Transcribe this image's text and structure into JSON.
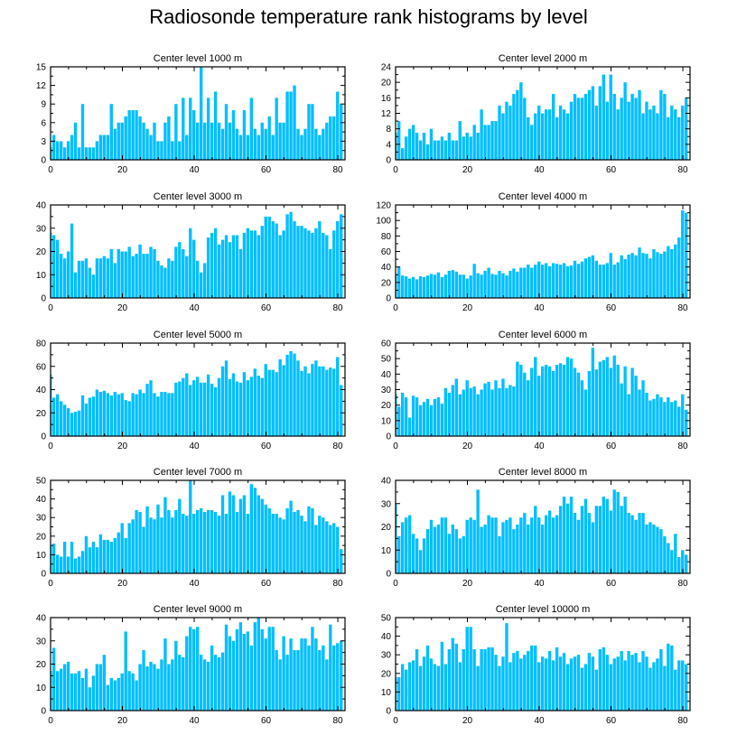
{
  "title": "Radiosonde temperature rank histograms by level",
  "colors": {
    "bar": "#00bfff",
    "axis": "#000000"
  },
  "chart_data": [
    {
      "type": "bar",
      "title": "Center level 1000 m",
      "xlim": [
        0,
        82
      ],
      "ylim": [
        0,
        15
      ],
      "xticks": [
        0,
        20,
        40,
        60,
        80
      ],
      "yticks": [
        0,
        3,
        6,
        9,
        12,
        15
      ],
      "values": [
        2,
        4,
        3,
        3,
        2,
        3,
        4,
        6,
        2,
        9,
        2,
        2,
        2,
        3,
        4,
        4,
        4,
        9,
        5,
        6,
        6,
        7,
        8,
        8,
        8,
        7,
        6,
        5,
        4,
        6,
        3,
        3,
        6,
        7,
        3,
        9,
        3,
        10,
        4,
        10,
        8,
        6,
        15,
        6,
        10,
        6,
        11,
        6,
        5,
        9,
        6,
        8,
        5,
        4,
        8,
        4,
        10,
        5,
        4,
        6,
        5,
        7,
        4,
        10,
        6,
        6,
        11,
        11,
        12,
        5,
        4,
        5,
        9,
        9,
        5,
        4,
        5,
        6,
        7,
        7,
        11,
        9
      ]
    },
    {
      "type": "bar",
      "title": "Center level 2000 m",
      "xlim": [
        0,
        82
      ],
      "ylim": [
        0,
        24
      ],
      "xticks": [
        0,
        20,
        40,
        60,
        80
      ],
      "yticks": [
        0,
        4,
        8,
        12,
        16,
        20,
        24
      ],
      "values": [
        7,
        10,
        3,
        6,
        8,
        9,
        7,
        5,
        7,
        4,
        8,
        5,
        5,
        6,
        5,
        7,
        5,
        5,
        10,
        6,
        7,
        6,
        9,
        7,
        13,
        9,
        9,
        10,
        10,
        14,
        12,
        15,
        14,
        17,
        18,
        20,
        16,
        11,
        9,
        12,
        14,
        12,
        13,
        13,
        17,
        11,
        14,
        13,
        12,
        15,
        17,
        16,
        16,
        17,
        18,
        19,
        14,
        19,
        22,
        15,
        22,
        17,
        13,
        16,
        20,
        15,
        17,
        16,
        18,
        12,
        15,
        13,
        14,
        12,
        18,
        17,
        11,
        14,
        13,
        11,
        14,
        16
      ]
    },
    {
      "type": "bar",
      "title": "Center level 3000 m",
      "xlim": [
        0,
        82
      ],
      "ylim": [
        0,
        40
      ],
      "xticks": [
        0,
        20,
        40,
        60,
        80
      ],
      "yticks": [
        0,
        10,
        20,
        30,
        40
      ],
      "values": [
        28,
        27,
        25,
        19,
        17,
        20,
        32,
        11,
        16,
        16,
        17,
        13,
        10,
        17,
        17,
        18,
        17,
        21,
        15,
        21,
        20,
        20,
        22,
        18,
        19,
        23,
        19,
        19,
        22,
        21,
        16,
        14,
        13,
        17,
        16,
        22,
        24,
        21,
        18,
        30,
        25,
        16,
        11,
        15,
        26,
        28,
        30,
        23,
        25,
        27,
        24,
        27,
        27,
        21,
        28,
        30,
        29,
        29,
        27,
        31,
        35,
        35,
        33,
        32,
        27,
        29,
        36,
        37,
        33,
        31,
        31,
        30,
        29,
        28,
        30,
        33,
        28,
        27,
        21,
        29,
        33,
        36
      ]
    },
    {
      "type": "bar",
      "title": "Center level 4000 m",
      "xlim": [
        0,
        82
      ],
      "ylim": [
        0,
        120
      ],
      "xticks": [
        0,
        20,
        40,
        60,
        80
      ],
      "yticks": [
        0,
        20,
        40,
        60,
        80,
        100,
        120
      ],
      "values": [
        31,
        40,
        29,
        28,
        25,
        27,
        24,
        28,
        27,
        29,
        31,
        30,
        33,
        27,
        30,
        35,
        36,
        34,
        30,
        30,
        25,
        29,
        44,
        32,
        30,
        35,
        39,
        31,
        30,
        35,
        32,
        29,
        35,
        38,
        34,
        39,
        39,
        43,
        39,
        43,
        47,
        43,
        45,
        41,
        45,
        44,
        43,
        45,
        41,
        42,
        48,
        44,
        47,
        51,
        53,
        55,
        48,
        43,
        43,
        45,
        58,
        43,
        46,
        55,
        50,
        56,
        58,
        55,
        65,
        58,
        57,
        51,
        63,
        59,
        57,
        60,
        67,
        63,
        69,
        78,
        113,
        110
      ]
    },
    {
      "type": "bar",
      "title": "Center level 5000 m",
      "xlim": [
        0,
        82
      ],
      "ylim": [
        0,
        80
      ],
      "xticks": [
        0,
        20,
        40,
        60,
        80
      ],
      "yticks": [
        0,
        20,
        40,
        60,
        80
      ],
      "values": [
        53,
        33,
        36,
        30,
        27,
        24,
        20,
        21,
        22,
        35,
        28,
        33,
        34,
        40,
        38,
        39,
        37,
        35,
        38,
        36,
        37,
        31,
        30,
        37,
        36,
        40,
        37,
        45,
        48,
        37,
        34,
        38,
        38,
        37,
        37,
        46,
        47,
        50,
        54,
        44,
        48,
        51,
        46,
        46,
        53,
        45,
        42,
        50,
        60,
        65,
        49,
        54,
        47,
        46,
        55,
        48,
        51,
        58,
        52,
        50,
        62,
        57,
        57,
        55,
        66,
        61,
        70,
        73,
        71,
        65,
        56,
        60,
        54,
        62,
        65,
        60,
        60,
        57,
        59,
        58,
        68,
        44
      ]
    },
    {
      "type": "bar",
      "title": "Center level 6000 m",
      "xlim": [
        0,
        82
      ],
      "ylim": [
        0,
        60
      ],
      "xticks": [
        0,
        20,
        40,
        60,
        80
      ],
      "yticks": [
        0,
        10,
        20,
        30,
        40,
        50,
        60
      ],
      "values": [
        27,
        19,
        28,
        25,
        12,
        26,
        25,
        20,
        22,
        24,
        20,
        24,
        25,
        21,
        31,
        28,
        33,
        37,
        27,
        30,
        36,
        31,
        32,
        27,
        30,
        34,
        35,
        30,
        36,
        31,
        37,
        31,
        33,
        32,
        48,
        46,
        41,
        36,
        44,
        51,
        39,
        45,
        46,
        45,
        42,
        46,
        47,
        46,
        51,
        50,
        44,
        41,
        36,
        30,
        42,
        57,
        43,
        48,
        49,
        51,
        44,
        52,
        46,
        34,
        45,
        27,
        44,
        39,
        30,
        36,
        28,
        23,
        24,
        27,
        25,
        22,
        25,
        22,
        23,
        19,
        27,
        17
      ]
    },
    {
      "type": "bar",
      "title": "Center level 7000 m",
      "xlim": [
        0,
        82
      ],
      "ylim": [
        0,
        50
      ],
      "xticks": [
        0,
        20,
        40,
        60,
        80
      ],
      "yticks": [
        0,
        10,
        20,
        30,
        40,
        50
      ],
      "values": [
        15,
        16,
        10,
        9,
        17,
        9,
        17,
        8,
        9,
        12,
        20,
        14,
        17,
        14,
        21,
        18,
        18,
        17,
        19,
        22,
        27,
        19,
        27,
        29,
        34,
        33,
        25,
        36,
        30,
        29,
        37,
        30,
        41,
        34,
        30,
        34,
        40,
        32,
        31,
        50,
        32,
        34,
        35,
        33,
        34,
        34,
        33,
        31,
        42,
        32,
        44,
        42,
        33,
        40,
        42,
        32,
        48,
        46,
        42,
        40,
        37,
        35,
        32,
        32,
        30,
        29,
        35,
        39,
        33,
        34,
        31,
        28,
        36,
        35,
        26,
        31,
        30,
        28,
        26,
        27,
        25,
        13
      ]
    },
    {
      "type": "bar",
      "title": "Center level 8000 m",
      "xlim": [
        0,
        82
      ],
      "ylim": [
        0,
        40
      ],
      "xticks": [
        0,
        20,
        40,
        60,
        80
      ],
      "yticks": [
        0,
        10,
        20,
        30,
        40
      ],
      "values": [
        30,
        16,
        22,
        24,
        25,
        17,
        15,
        10,
        15,
        19,
        23,
        20,
        21,
        24,
        24,
        17,
        21,
        19,
        15,
        16,
        23,
        24,
        23,
        36,
        20,
        21,
        25,
        24,
        24,
        16,
        22,
        23,
        24,
        19,
        21,
        24,
        26,
        21,
        24,
        29,
        24,
        21,
        25,
        27,
        24,
        25,
        29,
        33,
        30,
        33,
        26,
        23,
        29,
        32,
        26,
        22,
        29,
        29,
        33,
        32,
        27,
        36,
        35,
        29,
        33,
        26,
        25,
        23,
        26,
        26,
        21,
        22,
        21,
        20,
        19,
        16,
        13,
        10,
        17,
        7,
        10,
        8
      ]
    },
    {
      "type": "bar",
      "title": "Center level 9000 m",
      "xlim": [
        0,
        82
      ],
      "ylim": [
        0,
        40
      ],
      "xticks": [
        0,
        20,
        40,
        60,
        80
      ],
      "yticks": [
        0,
        10,
        20,
        30,
        40
      ],
      "values": [
        17,
        27,
        17,
        18,
        20,
        21,
        16,
        16,
        17,
        14,
        18,
        10,
        15,
        20,
        20,
        24,
        11,
        14,
        13,
        14,
        16,
        34,
        17,
        16,
        13,
        20,
        26,
        19,
        21,
        20,
        18,
        22,
        31,
        20,
        22,
        30,
        24,
        23,
        32,
        36,
        35,
        36,
        24,
        22,
        21,
        28,
        24,
        23,
        25,
        37,
        32,
        30,
        35,
        38,
        33,
        34,
        28,
        38,
        40,
        35,
        31,
        36,
        36,
        26,
        22,
        32,
        24,
        31,
        26,
        26,
        31,
        31,
        28,
        36,
        31,
        26,
        28,
        22,
        37,
        28,
        29,
        30
      ]
    },
    {
      "type": "bar",
      "title": "Center level 10000 m",
      "xlim": [
        0,
        82
      ],
      "ylim": [
        0,
        50
      ],
      "xticks": [
        0,
        20,
        40,
        60,
        80
      ],
      "yticks": [
        0,
        10,
        20,
        30,
        40,
        50
      ],
      "values": [
        18,
        18,
        25,
        22,
        26,
        27,
        33,
        24,
        29,
        35,
        28,
        25,
        24,
        37,
        25,
        33,
        39,
        36,
        26,
        33,
        45,
        45,
        33,
        24,
        33,
        33,
        34,
        34,
        30,
        24,
        29,
        47,
        26,
        31,
        32,
        28,
        30,
        32,
        35,
        35,
        26,
        29,
        28,
        32,
        27,
        34,
        29,
        31,
        25,
        28,
        29,
        30,
        23,
        25,
        31,
        29,
        22,
        33,
        34,
        30,
        25,
        28,
        29,
        32,
        27,
        32,
        30,
        31,
        26,
        32,
        29,
        23,
        26,
        28,
        33,
        24,
        36,
        35,
        22,
        27,
        27,
        25
      ]
    }
  ]
}
